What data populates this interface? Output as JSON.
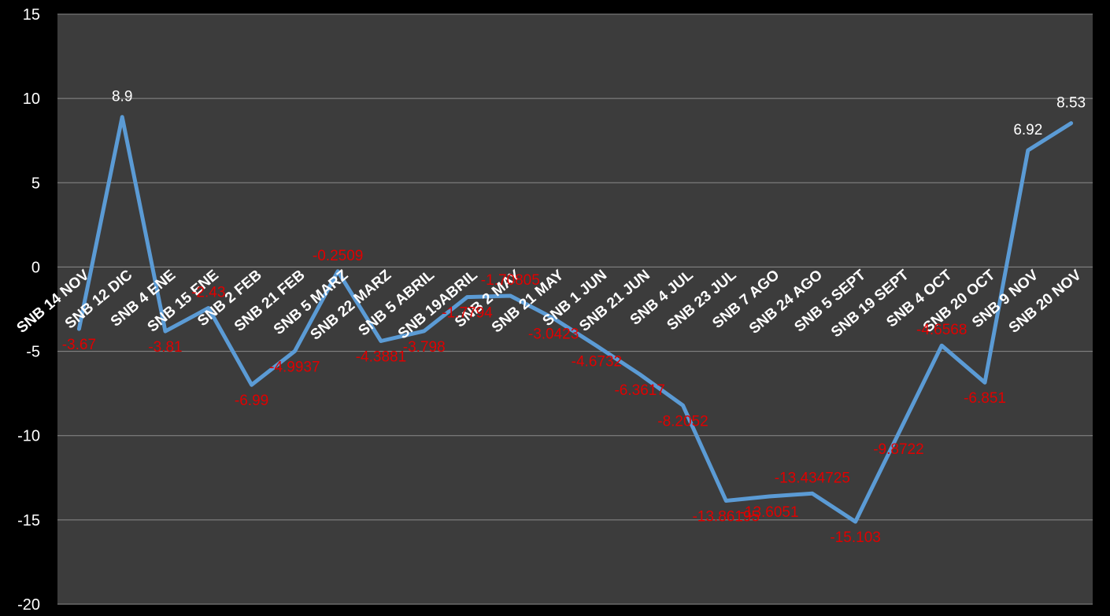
{
  "chart_data": {
    "type": "line",
    "title": "",
    "xlabel": "",
    "ylabel": "",
    "ylim": [
      -20,
      15
    ],
    "yticks": [
      15,
      10,
      5,
      0,
      -5,
      -10,
      -15,
      -20
    ],
    "grid": true,
    "legend": "none",
    "colors": {
      "background": "#000000",
      "plot_area": "#3c3c3c",
      "gridline": "#8a8a8a",
      "line": "#5b9bd5",
      "positive_label": "#ffffff",
      "negative_label": "#e00000",
      "axis_text": "#ffffff"
    },
    "categories": [
      "SNB 14 NOV",
      "SNB 12 DIC",
      "SNB 4 ENE",
      "SNB 15 ENE",
      "SNB 2 FEB",
      "SNB 21 FEB",
      "SNB 5 MARZ",
      "SNB 22 MARZ",
      "SNB 5 ABRIL",
      "SNB 19ABRIL",
      "SNB 2 MAY",
      "SNB 21 MAY",
      "SNB 1 JUN",
      "SNB 21 JUN",
      "SNB 4 JUL",
      "SNB 23 JUL",
      "SNB 7 AGO",
      "SNB 24 AGO",
      "SNB 5 SEPT",
      "SNB 19 SEPT",
      "SNB 4 OCT",
      "SNB 20 OCT",
      "SNB 9 NOV",
      "SNB 20 NOV"
    ],
    "series": [
      {
        "values": [
          -3.67,
          8.9,
          -3.81,
          -2.43,
          -6.99,
          -4.9937,
          -0.2509,
          -4.3881,
          -3.798,
          -1.7794,
          -1.70805,
          -3.0423,
          -4.6732,
          -6.3617,
          -8.2052,
          -13.86195,
          -13.6051,
          -13.434725,
          -15.103,
          -9.8722,
          -4.6568,
          -6.851,
          6.92,
          8.53
        ],
        "labels": [
          "-3.67",
          "8.9",
          "-3.81",
          "-2.43",
          "-6.99",
          "-4.9937",
          "-0.2509",
          "-4.3881",
          "-3.798",
          "-1.7794",
          "-1.70805",
          "-3.0423",
          "-4.6732",
          "-6.3617",
          "-8.2052",
          "-13.86195",
          "-13.6051",
          "-13.434725",
          "-15.103",
          "-9.8722",
          "-4.6568",
          "-6.851",
          "6.92",
          "8.53"
        ]
      }
    ]
  }
}
